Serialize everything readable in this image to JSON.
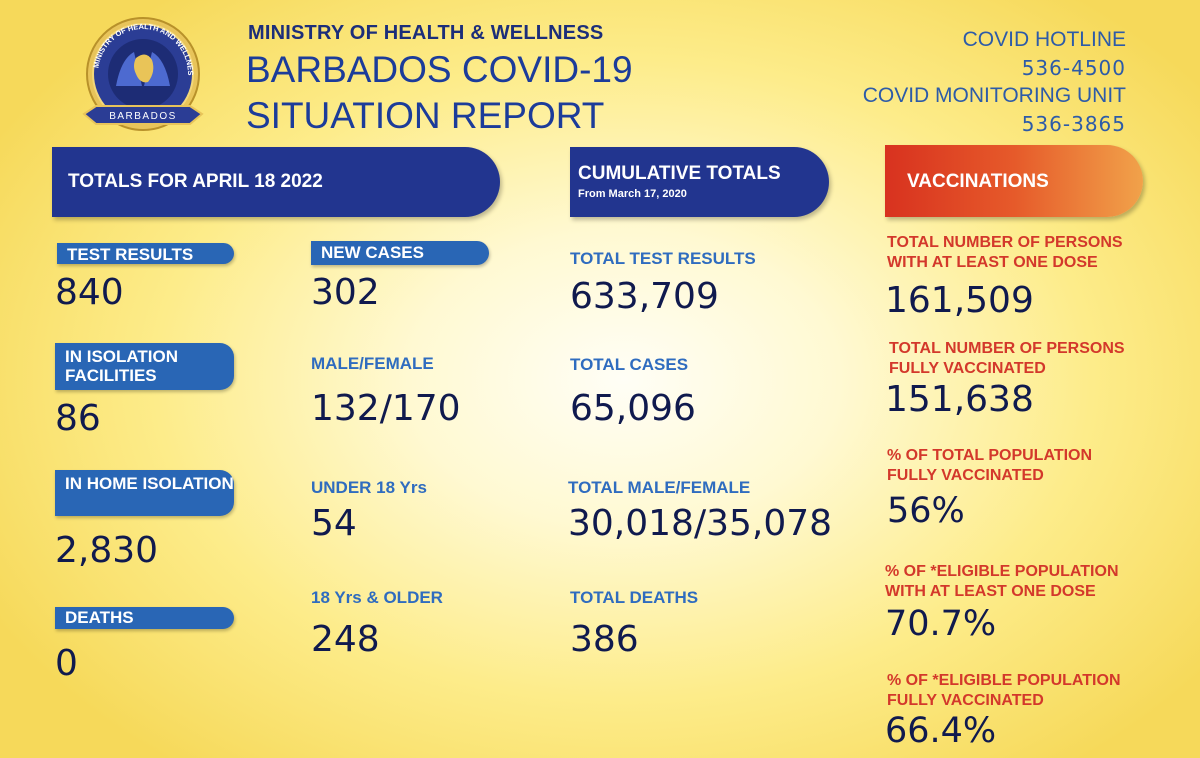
{
  "header": {
    "ministry": "MINISTRY OF HEALTH & WELLNESS",
    "title_line1": "BARBADOS COVID-19",
    "title_line2": "SITUATION REPORT",
    "logo_text_top": "MINISTRY OF HEALTH AND WELLNESS",
    "logo_text_bottom": "BARBADOS"
  },
  "contacts": {
    "hotline_label": "COVID HOTLINE",
    "hotline_number": "536-4500",
    "monitoring_label": "COVID MONITORING UNIT",
    "monitoring_number": "536-3865"
  },
  "daily": {
    "banner": "TOTALS FOR APRIL 18 2022",
    "test_results_label": "TEST RESULTS",
    "test_results": "840",
    "isolation_facilities_label": "IN ISOLATION FACILITIES",
    "isolation_facilities": "86",
    "home_isolation_label": "IN HOME ISOLATION",
    "home_isolation": "2,830",
    "deaths_label": "DEATHS",
    "deaths": "0",
    "new_cases_label": "NEW CASES",
    "new_cases": "302",
    "male_female_label": "MALE/FEMALE",
    "male_female": "132/170",
    "under18_label": "UNDER 18 Yrs",
    "under18": "54",
    "over18_label": "18 Yrs & OLDER",
    "over18": "248"
  },
  "cumulative": {
    "banner": "CUMULATIVE TOTALS",
    "banner_sub": "From March 17, 2020",
    "total_tests_label": "TOTAL TEST RESULTS",
    "total_tests": "633,709",
    "total_cases_label": "TOTAL CASES",
    "total_cases": "65,096",
    "total_mf_label": "TOTAL MALE/FEMALE",
    "total_mf": "30,018/35,078",
    "total_deaths_label": "TOTAL DEATHS",
    "total_deaths": "386"
  },
  "vaccinations": {
    "banner": "VACCINATIONS",
    "one_dose_label_1": "TOTAL NUMBER OF PERSONS",
    "one_dose_label_2": "WITH AT LEAST ONE DOSE",
    "one_dose": "161,509",
    "fully_label_1": "TOTAL NUMBER OF PERSONS",
    "fully_label_2": "FULLY VACCINATED",
    "fully": "151,638",
    "pct_pop_label_1": "% OF TOTAL POPULATION",
    "pct_pop_label_2": "FULLY VACCINATED",
    "pct_pop": "56%",
    "pct_elig_one_label_1": "% OF *ELIGIBLE POPULATION",
    "pct_elig_one_label_2": "WITH AT LEAST ONE DOSE",
    "pct_elig_one": "70.7%",
    "pct_elig_full_label_1": "% OF *ELIGIBLE POPULATION",
    "pct_elig_full_label_2": "FULLY VACCINATED",
    "pct_elig_full": "66.4%"
  },
  "colors": {
    "navy": "#22358f",
    "tag_blue": "#2966b5",
    "label_blue": "#2f6cbf",
    "vaccination_red": "#d3382b",
    "background_yellow": "#f6d95a"
  }
}
